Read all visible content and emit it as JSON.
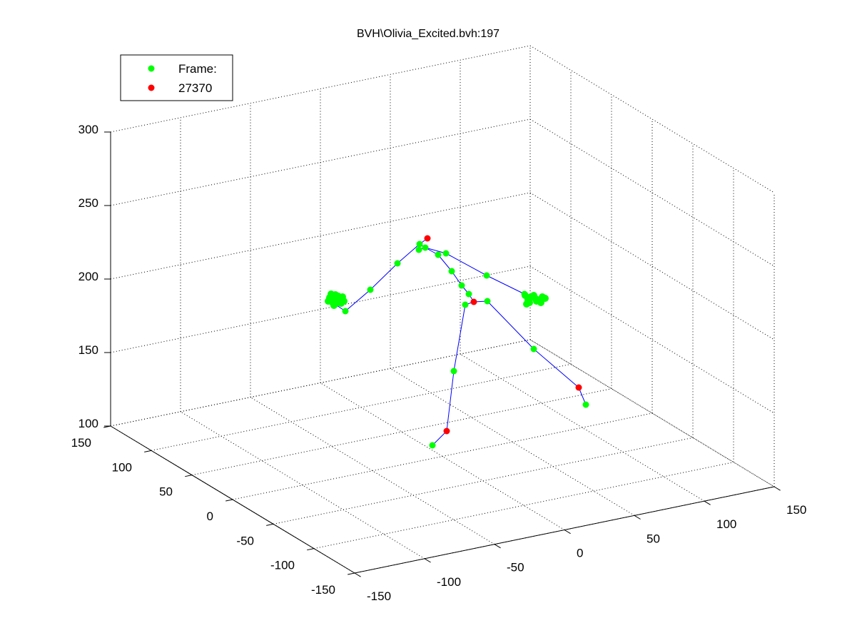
{
  "chart_data": {
    "type": "scatter",
    "title": "BVH\\Olivia_Excited.bvh:197",
    "xlabel": "",
    "ylabel": "",
    "zlabel": "",
    "z_ticks": [
      "100",
      "150",
      "200",
      "250",
      "300"
    ],
    "y_ticks": [
      "150",
      "100",
      "50",
      "0",
      "-50",
      "-100",
      "-150"
    ],
    "x_ticks": [
      "-150",
      "-100",
      "-50",
      "0",
      "50",
      "100",
      "150"
    ],
    "zlim": [
      100,
      300
    ],
    "grid": true,
    "box": "3d",
    "legend": {
      "placement": "top-left",
      "entries": [
        {
          "label": "Frame:",
          "color": "#00ff00"
        },
        {
          "label": "27370",
          "color": "#ff0000"
        }
      ]
    },
    "colors": {
      "joint": "#00ff00",
      "end_effector": "#ff0000",
      "bone": "#0000ff"
    }
  }
}
